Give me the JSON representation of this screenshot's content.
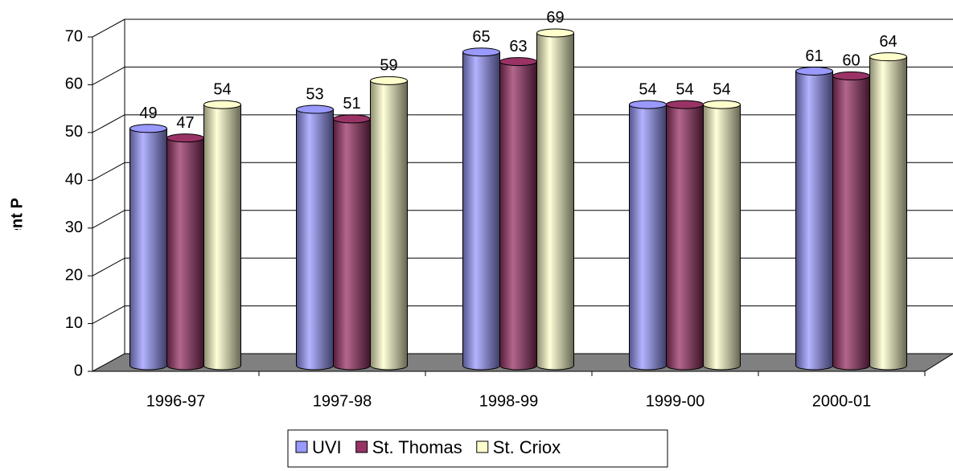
{
  "chart_data": {
    "type": "bar3d",
    "ylabel": "Percent Passed",
    "categories": [
      "1996-97",
      "1997-98",
      "1998-99",
      "1999-00",
      "2000-01"
    ],
    "series": [
      {
        "name": "UVI",
        "color": "#9999ff",
        "values": [
          49,
          53,
          65,
          54,
          61
        ]
      },
      {
        "name": "St. Thomas",
        "color": "#993366",
        "values": [
          47,
          51,
          63,
          54,
          60
        ]
      },
      {
        "name": "St. Criox",
        "color": "#ffffcc",
        "values": [
          54,
          59,
          69,
          54,
          64
        ]
      }
    ],
    "ylim": [
      0,
      70
    ],
    "yticks": [
      0,
      10,
      20,
      30,
      40,
      50,
      60,
      70
    ],
    "grid": true,
    "legend": "bottom"
  }
}
